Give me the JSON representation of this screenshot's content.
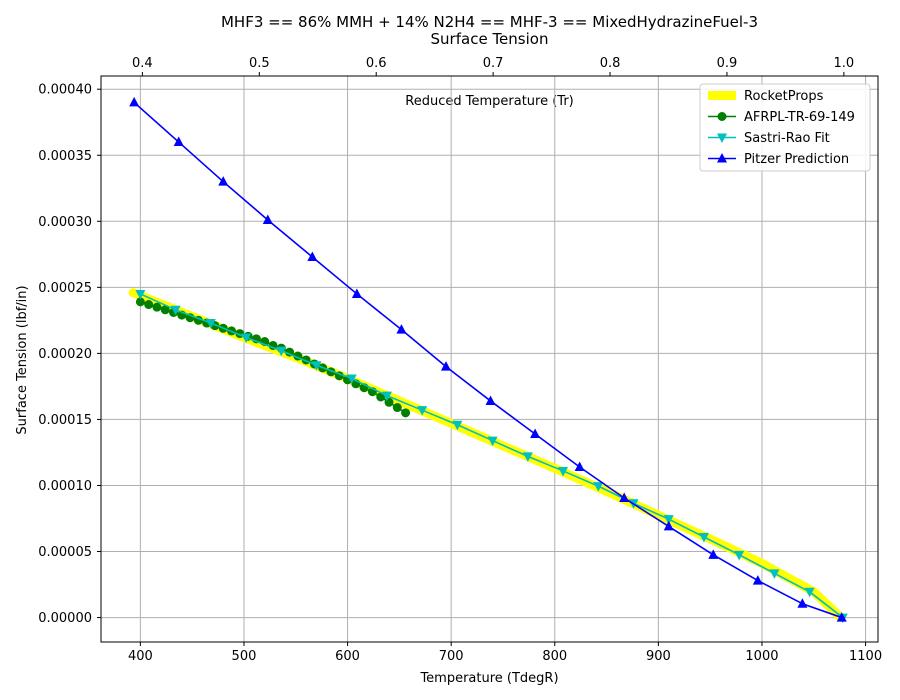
{
  "chart_data": {
    "type": "line",
    "title": "MHF3 == 86% MMH + 14% N2H4 == MHF-3 == MixedHydrazineFuel-3",
    "subtitle": "Surface Tension",
    "xlabel": "Temperature (TdegR)",
    "ylabel": "Surface Tension (lbf/in)",
    "x2label": "Reduced Temperature (Tr)",
    "xlim": [
      362,
      1112
    ],
    "ylim": [
      -1.85e-05,
      0.00041
    ],
    "x2lim": [
      0.3646,
      1.0292
    ],
    "xticks": [
      400,
      500,
      600,
      700,
      800,
      900,
      1000,
      1100
    ],
    "x2ticks": [
      0.4,
      0.5,
      0.6,
      0.7,
      0.8,
      0.9,
      1.0
    ],
    "yticks": [
      0.0,
      5e-05,
      0.0001,
      0.00015,
      0.0002,
      0.00025,
      0.0003,
      0.00035,
      0.0004
    ],
    "xtick_labels": [
      "400",
      "500",
      "600",
      "700",
      "800",
      "900",
      "1000",
      "1100"
    ],
    "x2tick_labels": [
      "0.4",
      "0.5",
      "0.6",
      "0.7",
      "0.8",
      "0.9",
      "1.0"
    ],
    "ytick_labels": [
      "0.00000",
      "0.00005",
      "0.00010",
      "0.00015",
      "0.00020",
      "0.00025",
      "0.00030",
      "0.00035",
      "0.00040"
    ],
    "grid": true,
    "legend_position": "top-right",
    "series": [
      {
        "name": "RocketProps",
        "color": "#ffff00",
        "marker": "none",
        "style": "thick-line",
        "x": [
          393,
          450,
          500,
          550,
          600,
          650,
          700,
          750,
          800,
          850,
          900,
          950,
          1000,
          1050,
          1076
        ],
        "y": [
          0.000246,
          0.000228,
          0.000212,
          0.000197,
          0.000181,
          0.000164,
          0.000147,
          0.00013,
          0.000113,
          9.55e-05,
          7.75e-05,
          5.95e-05,
          4.1e-05,
          1.95e-05,
          0.0
        ]
      },
      {
        "name": "AFRPL-TR-69-149",
        "color": "#008000",
        "marker": "circle",
        "x": [
          400,
          408,
          416,
          424,
          432,
          440,
          448,
          456,
          464,
          472,
          480,
          488,
          496,
          504,
          512,
          520,
          528,
          536,
          544,
          552,
          560,
          568,
          576,
          584,
          592,
          600,
          608,
          616,
          624,
          632,
          640,
          648,
          656
        ],
        "y": [
          0.000239,
          0.000237,
          0.000235,
          0.000233,
          0.000231,
          0.000229,
          0.000227,
          0.000225,
          0.000223,
          0.000221,
          0.000219,
          0.000217,
          0.000215,
          0.000213,
          0.000211,
          0.000209,
          0.000206,
          0.000204,
          0.000201,
          0.000198,
          0.000195,
          0.000192,
          0.000189,
          0.000186,
          0.000183,
          0.00018,
          0.000177,
          0.000174,
          0.000171,
          0.000167,
          0.000163,
          0.000159,
          0.000155
        ]
      },
      {
        "name": "Sastri-Rao Fit",
        "color": "#00bfbf",
        "marker": "triangle-down",
        "x": [
          400,
          434,
          468,
          502,
          536,
          570,
          604,
          638,
          672,
          706,
          740,
          774,
          808,
          842,
          876,
          910,
          944,
          978,
          1012,
          1046,
          1078
        ],
        "y": [
          0.000245,
          0.000233,
          0.000223,
          0.000212,
          0.000202,
          0.000191,
          0.000181,
          0.000168,
          0.000157,
          0.000146,
          0.000134,
          0.000122,
          0.000111,
          9.95e-05,
          8.65e-05,
          7.45e-05,
          6.1e-05,
          4.75e-05,
          3.35e-05,
          1.95e-05,
          0.0
        ]
      },
      {
        "name": "Pitzer Prediction",
        "color": "#0000ff",
        "marker": "triangle-up",
        "x": [
          394,
          437,
          480,
          523,
          566,
          609,
          652,
          695,
          738,
          781,
          824,
          867,
          910,
          953,
          996,
          1039,
          1077
        ],
        "y": [
          0.00039,
          0.00036,
          0.00033,
          0.000301,
          0.000273,
          0.000245,
          0.000218,
          0.00019,
          0.000164,
          0.000139,
          0.000114,
          9.05e-05,
          6.9e-05,
          4.75e-05,
          2.8e-05,
          1.05e-05,
          0.0
        ]
      }
    ]
  }
}
